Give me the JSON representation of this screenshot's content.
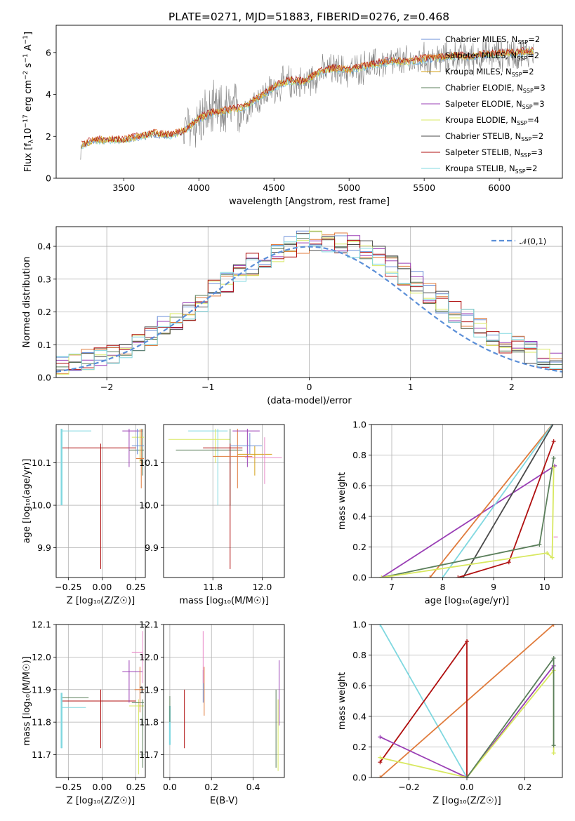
{
  "figure": {
    "title": "PLATE=0271, MJD=51883, FIBERID=0276, z=0.468"
  },
  "series_colors": {
    "Chabrier MILES": "#6a8fd8",
    "Salpeter MILES": "#e07b3c",
    "Kroupa MILES": "#d4a017",
    "Chabrier ELODIE": "#5b7f5b",
    "Salpeter ELODIE": "#9a3fb5",
    "Kroupa ELODIE": "#d8e860",
    "Chabrier STELIB": "#4a4a4a",
    "Salpeter STELIB": "#b01010",
    "Kroupa STELIB": "#80d8e0",
    "data": "#808080"
  },
  "chart_data": [
    {
      "id": "spectrum",
      "type": "line",
      "xlabel": "wavelength [Angstrom, rest frame]",
      "ylabel_parts": [
        "Flux [f",
        "λ",
        "10",
        "−17",
        " erg cm",
        "−2",
        " s",
        "−1",
        " A",
        "−1",
        "]"
      ],
      "xlim": [
        3050,
        6420
      ],
      "ylim": [
        0,
        7.3
      ],
      "xticks": [
        3500,
        4000,
        4500,
        5000,
        5500,
        6000
      ],
      "yticks": [
        0,
        2,
        4,
        6
      ],
      "legend_position": "upper-right",
      "legend": [
        {
          "name": "Chabrier MILES",
          "nssp": "2"
        },
        {
          "name": "Salpeter MILES",
          "nssp": "2"
        },
        {
          "name": "Kroupa MILES",
          "nssp": "2"
        },
        {
          "name": "Chabrier ELODIE",
          "nssp": "3"
        },
        {
          "name": "Salpeter ELODIE",
          "nssp": "3"
        },
        {
          "name": "Kroupa ELODIE",
          "nssp": "4"
        },
        {
          "name": "Chabrier STELIB",
          "nssp": "2"
        },
        {
          "name": "Salpeter STELIB",
          "nssp": "3"
        },
        {
          "name": "Kroupa STELIB",
          "nssp": "2"
        }
      ],
      "nssp_label": "N",
      "nssp_sub": "SSP",
      "model_continuum": {
        "x": [
          3210,
          3300,
          3400,
          3500,
          3600,
          3700,
          3800,
          3900,
          4000,
          4100,
          4200,
          4300,
          4400,
          4500,
          4600,
          4700,
          4800,
          4900,
          5000,
          5100,
          5200,
          5300,
          5400,
          5500,
          5600,
          5700,
          5800,
          5900,
          6000,
          6100,
          6200
        ],
        "y": [
          1.5,
          1.75,
          1.8,
          1.78,
          1.95,
          2.1,
          2.0,
          2.2,
          2.8,
          3.1,
          3.2,
          3.35,
          3.8,
          4.3,
          4.6,
          4.55,
          5.0,
          5.2,
          5.1,
          5.3,
          5.45,
          5.55,
          5.5,
          5.65,
          5.7,
          5.8,
          5.75,
          5.85,
          5.9,
          5.95,
          6.0
        ]
      }
    },
    {
      "id": "residuals",
      "type": "line",
      "xlabel": "(data-model)/error",
      "ylabel": "Normed distribution",
      "xlim": [
        -2.5,
        2.5
      ],
      "ylim": [
        0,
        0.46
      ],
      "xticks": [
        -2,
        -1,
        0,
        1,
        2
      ],
      "yticks": [
        0.0,
        0.1,
        0.2,
        0.3,
        0.4
      ],
      "legend_position": "upper-right",
      "legend": [
        {
          "name": "𝒩(0,1)"
        }
      ],
      "grid": true
    },
    {
      "id": "age_vs_Z",
      "type": "scatter",
      "xlabel": "Z [log₁₀(Z/Z☉)]",
      "ylabel": "age  [log₁₀(age/yr)]",
      "xlim": [
        -0.34,
        0.32
      ],
      "ylim": [
        9.83,
        10.19
      ],
      "xticks": [
        -0.25,
        0.0,
        0.25
      ],
      "yticks": [
        9.9,
        10.0,
        10.1
      ],
      "grid": true
    },
    {
      "id": "age_vs_mass",
      "type": "scatter",
      "xlabel": "mass [log₁₀(M/M☉)]",
      "ylabel": "",
      "xlim": [
        11.6,
        12.09
      ],
      "ylim": [
        9.83,
        10.19
      ],
      "xticks": [
        11.8,
        12.0
      ],
      "yticks": [
        9.9,
        10.0,
        10.1
      ],
      "grid": true
    },
    {
      "id": "weight_vs_age",
      "type": "line",
      "xlabel": "age  [log₁₀(age/yr)]",
      "ylabel": "mass weight",
      "xlim": [
        6.6,
        10.35
      ],
      "ylim": [
        0,
        1.0
      ],
      "xticks": [
        7,
        8,
        9,
        10
      ],
      "yticks": [
        0.0,
        0.2,
        0.4,
        0.6,
        0.8,
        1.0
      ],
      "grid": true
    },
    {
      "id": "mass_vs_Z",
      "type": "scatter",
      "xlabel": "Z [log₁₀(Z/Z☉)]",
      "ylabel": "mass [log₁₀(M/M☉)]",
      "xlim": [
        -0.34,
        0.32
      ],
      "ylim": [
        11.63,
        12.1
      ],
      "xticks": [
        -0.25,
        0.0,
        0.25
      ],
      "yticks": [
        11.7,
        11.8,
        11.9,
        12.0,
        12.1
      ],
      "grid": true
    },
    {
      "id": "mass_vs_ebv",
      "type": "scatter",
      "xlabel": "E(B-V)",
      "ylabel": "",
      "xlim": [
        -0.03,
        0.55
      ],
      "ylim": [
        11.63,
        12.1
      ],
      "xticks": [
        0.0,
        0.2,
        0.4
      ],
      "yticks": [
        11.7,
        11.8,
        11.9,
        12.0,
        12.1
      ],
      "grid": true
    },
    {
      "id": "weight_vs_Z",
      "type": "line",
      "xlabel": "Z [log₁₀(Z/Z☉)]",
      "ylabel": "mass weight",
      "xlim": [
        -0.33,
        0.33
      ],
      "ylim": [
        0,
        1.0
      ],
      "xticks": [
        -0.2,
        0.0,
        0.2
      ],
      "yticks": [
        0.0,
        0.2,
        0.4,
        0.6,
        0.8,
        1.0
      ],
      "grid": true
    }
  ]
}
